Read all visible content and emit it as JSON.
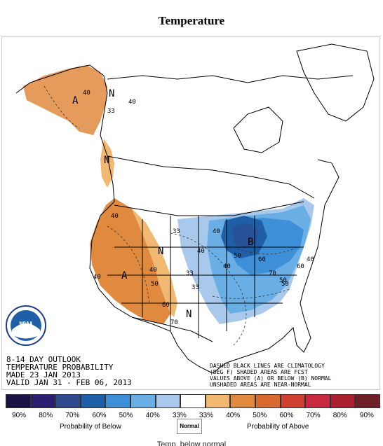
{
  "title": "Temperature",
  "map": {
    "info_lines": [
      "8-14 DAY OUTLOOK",
      "TEMPERATURE PROBABILITY",
      "MADE  23 JAN 2013",
      "VALID  JAN 31 - FEB 06, 2013"
    ],
    "note_lines": [
      "DASHED BLACK LINES ARE CLIMATOLOGY",
      "(DEG F) SHADED AREAS ARE FCST",
      "VALUES ABOVE (A) OR BELOW (B) NORMAL",
      "UNSHADED AREAS ARE NEAR-NORMAL"
    ],
    "region_labels": [
      "A",
      "N",
      "N",
      "A",
      "N",
      "N",
      "B"
    ],
    "contour_labels": [
      "40",
      "33",
      "40",
      "40",
      "40",
      "33",
      "40",
      "33",
      "40",
      "50",
      "60",
      "70",
      "40",
      "33",
      "50",
      "40",
      "60",
      "70",
      "50",
      "50",
      "60",
      "40"
    ],
    "logo_text": "NOAA"
  },
  "legend": {
    "colors": [
      "#1a1244",
      "#2a1e6e",
      "#2e4a8c",
      "#1e5fa8",
      "#3d8fd8",
      "#6aaee6",
      "#a8c8ec",
      "#ffffff",
      "#f0b870",
      "#e08a40",
      "#d86a30",
      "#d04030",
      "#c82840",
      "#a82030",
      "#6e1e26"
    ],
    "labels": [
      "90%",
      "80%",
      "70%",
      "60%",
      "50%",
      "40%",
      "33%",
      "33%",
      "40%",
      "50%",
      "60%",
      "70%",
      "80%",
      "90%"
    ],
    "below_caption": "Probability of Below",
    "normal_caption": "Normal",
    "above_caption": "Probability of Above"
  },
  "footer_partial": "Temp. below normal"
}
